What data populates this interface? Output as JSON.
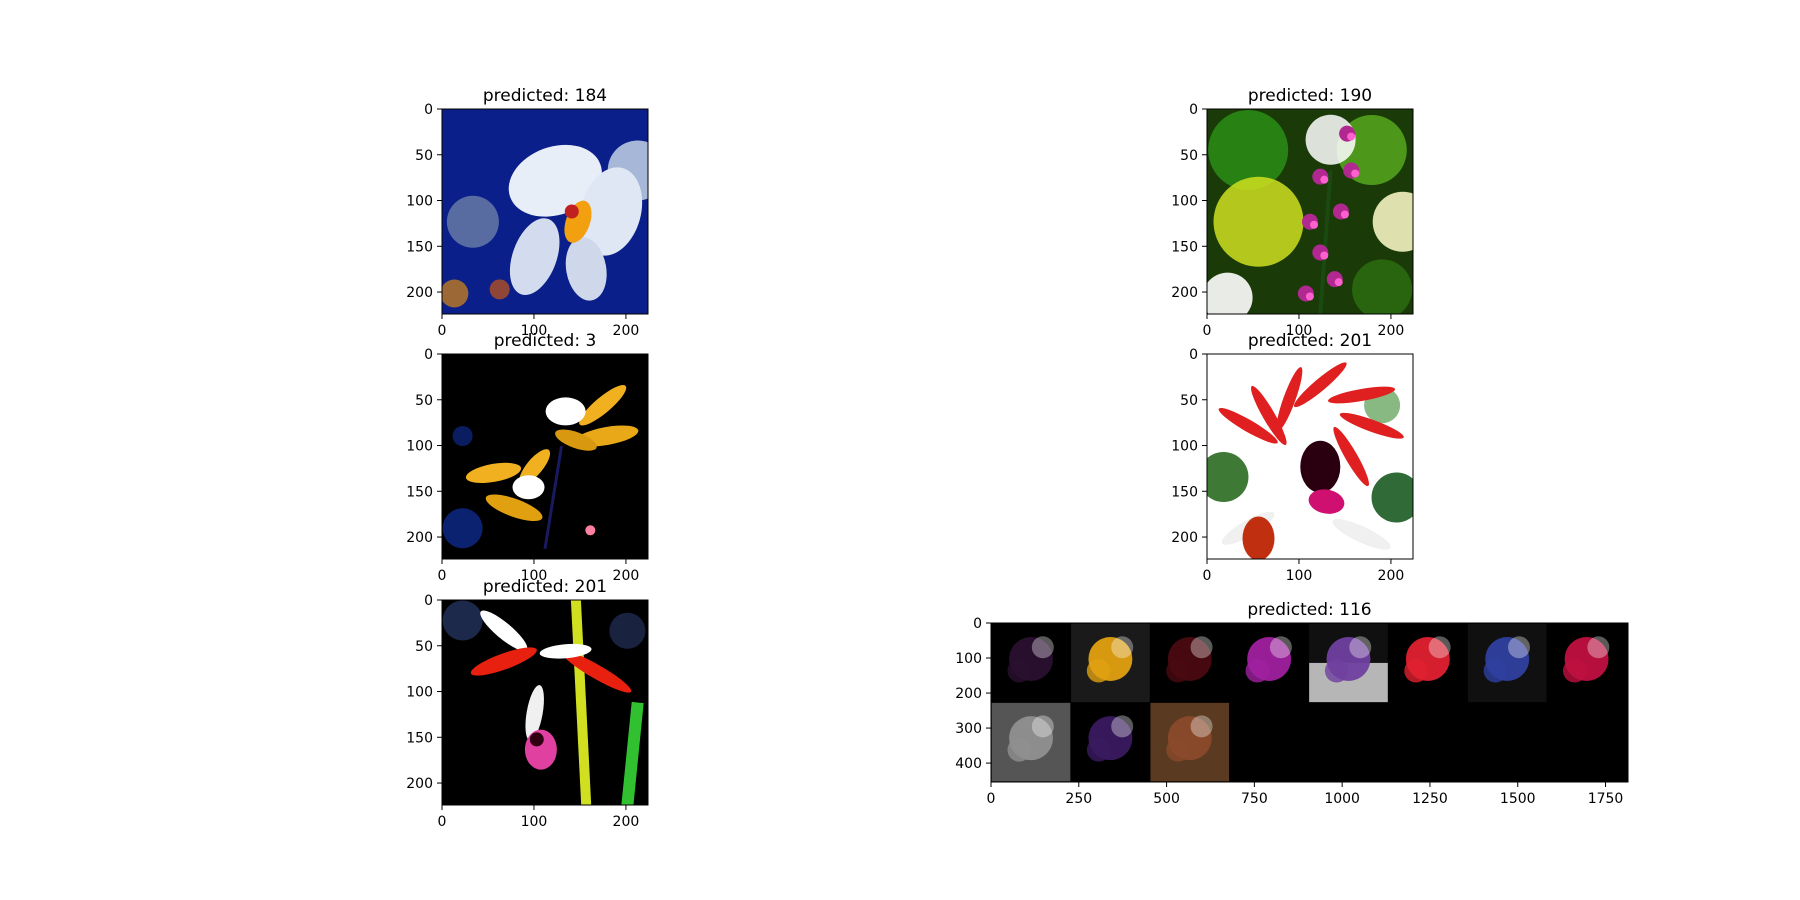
{
  "figure": {
    "background": "#ffffff"
  },
  "chart_data": [
    {
      "type": "image",
      "title": "predicted: 184",
      "xticks": [
        0,
        100,
        200
      ],
      "yticks": [
        0,
        50,
        100,
        150,
        200
      ],
      "xlim": [
        0,
        224
      ],
      "ylim": [
        224,
        0
      ],
      "image": {
        "bg": "#0b1f8a",
        "scene": "white phalaenopsis orchid on deep blue background",
        "colors": [
          "#0b1f8a",
          "#e6ecf5",
          "#f0a000",
          "#5a6a90"
        ]
      }
    },
    {
      "type": "image",
      "title": "predicted: 190",
      "xticks": [
        0,
        100,
        200
      ],
      "yticks": [
        0,
        50,
        100,
        150,
        200
      ],
      "xlim": [
        0,
        224
      ],
      "ylim": [
        224,
        0
      ],
      "image": {
        "bg": "#1a3a08",
        "scene": "purple orchid spike with blurred green and yellow background",
        "colors": [
          "#2a7a10",
          "#d8e820",
          "#a02890",
          "#ffffff"
        ]
      }
    },
    {
      "type": "image",
      "title": "predicted: 3",
      "xticks": [
        0,
        100,
        200
      ],
      "yticks": [
        0,
        50,
        100,
        150,
        200
      ],
      "xlim": [
        0,
        224
      ],
      "ylim": [
        224,
        0
      ],
      "image": {
        "bg": "#000000",
        "scene": "two yellow and white cymbidium flowers on black",
        "colors": [
          "#000000",
          "#f0b020",
          "#ffffff",
          "#1030a0"
        ]
      }
    },
    {
      "type": "image",
      "title": "predicted: 201",
      "xticks": [
        0,
        100,
        200
      ],
      "yticks": [
        0,
        50,
        100,
        150,
        200
      ],
      "xlim": [
        0,
        224
      ],
      "ylim": [
        224,
        0
      ],
      "image": {
        "bg": "#ffffff",
        "scene": "red orchid with dark magenta lip on bright white/green background",
        "colors": [
          "#ffffff",
          "#e02020",
          "#c01070",
          "#2a8a30"
        ]
      }
    },
    {
      "type": "image",
      "title": "predicted: 201",
      "xticks": [
        0,
        100,
        200
      ],
      "yticks": [
        0,
        50,
        100,
        150,
        200
      ],
      "xlim": [
        0,
        224
      ],
      "ylim": [
        224,
        0
      ],
      "image": {
        "bg": "#000000",
        "scene": "red and white orchid with magenta lip, yellow-green stems on black",
        "colors": [
          "#000000",
          "#e82010",
          "#ffffff",
          "#e040a0",
          "#d0e020"
        ]
      }
    },
    {
      "type": "image",
      "title": "predicted: 116",
      "xticks": [
        0,
        250,
        500,
        750,
        1000,
        1250,
        1500,
        1750
      ],
      "yticks": [
        0,
        100,
        200,
        300,
        400
      ],
      "xlim": [
        0,
        1814
      ],
      "ylim": [
        454,
        0
      ],
      "image": {
        "bg": "#000000",
        "scene": "grid of 11 orchid image tiles, 8 in first row and 3 in second row",
        "tiles": [
          "#2a1030",
          "#e0a010",
          "#4a0a10",
          "#a020a0",
          "#7040a0",
          "#e02030",
          "#3040a0",
          "#c01040",
          "#909090",
          "#3a1a60",
          "#8a4a2a"
        ]
      }
    }
  ]
}
